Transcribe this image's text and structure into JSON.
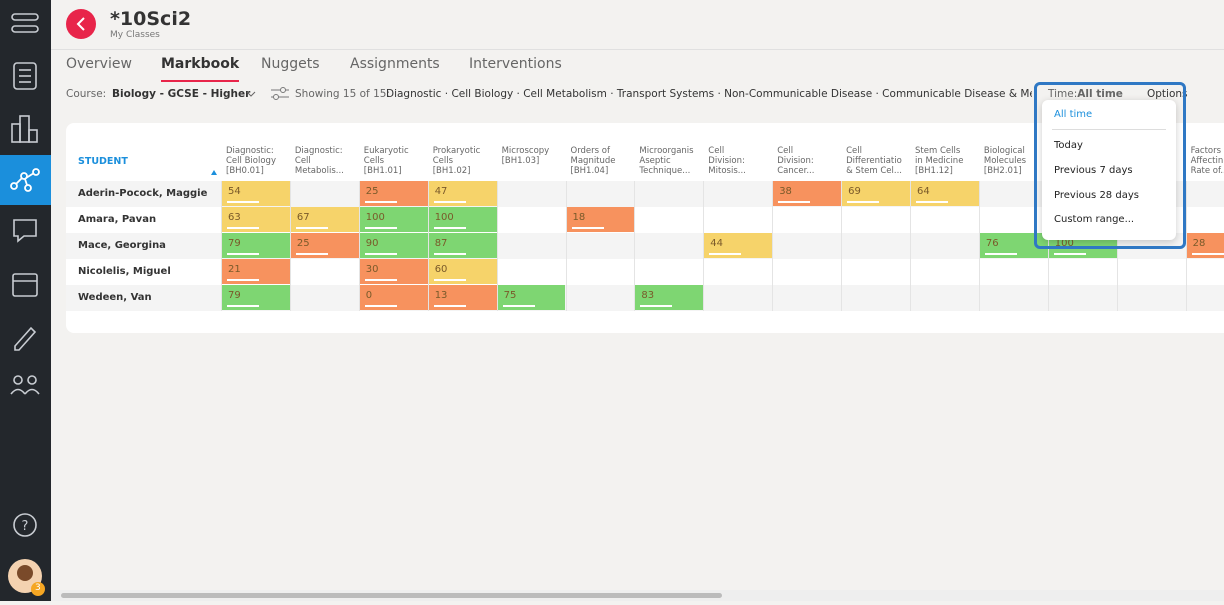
{
  "header": {
    "title": "*10Sci2",
    "subtitle": "My Classes"
  },
  "tabs": [
    "Overview",
    "Markbook",
    "Nuggets",
    "Assignments",
    "Interventions"
  ],
  "active_tab": 1,
  "filters": {
    "course_label": "Course:",
    "course": "Biology - GCSE - Higher",
    "showing": "Showing 15 of 15:",
    "topics": "Diagnostic · Cell Biology · Cell Metabolism · Transport Systems · Non-Communicable Disease · Communicable Disease & Medicine",
    "time_label": "Time:",
    "time": "All time",
    "options": "Options"
  },
  "table": {
    "student_header": "STUDENT",
    "columns": [
      [
        "Diagnostic:",
        "Cell Biology",
        "[BH0.01]"
      ],
      [
        "Diagnostic:",
        "Cell",
        "Metabolis..."
      ],
      [
        "Eukaryotic",
        "Cells",
        "[BH1.01]"
      ],
      [
        "Prokaryotic",
        "Cells",
        "[BH1.02]"
      ],
      [
        "Microscopy",
        "[BH1.03]"
      ],
      [
        "Orders of",
        "Magnitude",
        "[BH1.04]"
      ],
      [
        "Microorganis",
        "Aseptic",
        "Technique..."
      ],
      [
        "Cell",
        "Division:",
        "Mitosis..."
      ],
      [
        "Cell",
        "Division:",
        "Cancer..."
      ],
      [
        "Cell",
        "Differentiatio",
        "& Stem Cel..."
      ],
      [
        "Stem Cells",
        "in Medicine",
        "[BH1.12]"
      ],
      [
        "Biological",
        "Molecules",
        "[BH2.01]"
      ],
      null,
      null,
      [
        "Factors",
        "Affectin",
        "Rate of..."
      ]
    ],
    "rows": [
      {
        "name": "Aderin-Pocock, Maggie",
        "scores": [
          54,
          null,
          25,
          47,
          null,
          null,
          null,
          null,
          38,
          69,
          64,
          null,
          null,
          null,
          null
        ],
        "colors": [
          "#f6d36a",
          null,
          "#f7925e",
          "#f6d36a",
          null,
          null,
          null,
          null,
          "#f7925e",
          "#f6d36a",
          "#f6d36a",
          null,
          null,
          null,
          null
        ]
      },
      {
        "name": "Amara, Pavan",
        "scores": [
          63,
          67,
          100,
          100,
          null,
          18,
          null,
          null,
          null,
          null,
          null,
          null,
          null,
          null,
          null
        ],
        "colors": [
          "#f6d36a",
          "#f6d36a",
          "#7ed672",
          "#7ed672",
          null,
          "#f7925e",
          null,
          null,
          null,
          null,
          null,
          null,
          null,
          null,
          null
        ]
      },
      {
        "name": "Mace, Georgina",
        "scores": [
          79,
          25,
          90,
          87,
          null,
          null,
          null,
          44,
          null,
          null,
          null,
          76,
          100,
          null,
          28
        ],
        "colors": [
          "#7ed672",
          "#f7925e",
          "#7ed672",
          "#7ed672",
          null,
          null,
          null,
          "#f6d36a",
          null,
          null,
          null,
          "#7ed672",
          "#7ed672",
          null,
          "#f7925e"
        ]
      },
      {
        "name": "Nicolelis, Miguel",
        "scores": [
          21,
          null,
          30,
          60,
          null,
          null,
          null,
          null,
          null,
          null,
          null,
          null,
          null,
          null,
          null
        ],
        "colors": [
          "#f7925e",
          null,
          "#f7925e",
          "#f6d36a",
          null,
          null,
          null,
          null,
          null,
          null,
          null,
          null,
          null,
          null,
          null
        ]
      },
      {
        "name": "Wedeen, Van",
        "scores": [
          79,
          null,
          0,
          13,
          75,
          null,
          83,
          null,
          null,
          null,
          null,
          null,
          null,
          null,
          null
        ],
        "colors": [
          "#7ed672",
          null,
          "#f7925e",
          "#f7925e",
          "#7ed672",
          null,
          "#7ed672",
          null,
          null,
          null,
          null,
          null,
          null,
          null,
          null
        ]
      }
    ]
  },
  "dropdown": {
    "items": [
      "All time",
      "Today",
      "Previous 7 days",
      "Previous 28 days",
      "Custom range..."
    ],
    "selected": 0
  },
  "badge": "3"
}
